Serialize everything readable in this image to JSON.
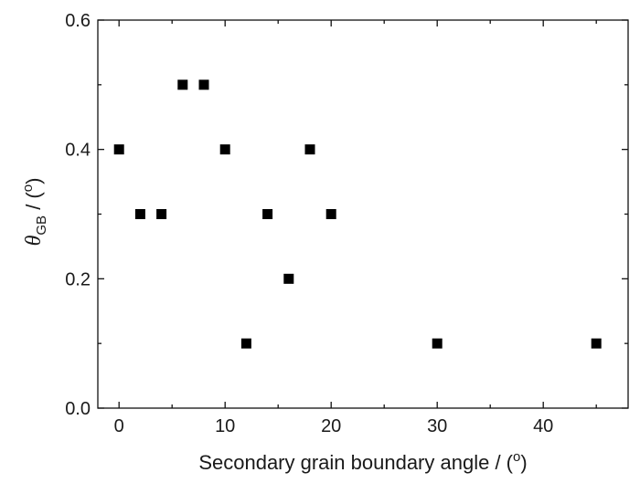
{
  "chart_data": {
    "type": "scatter",
    "title": "",
    "xlabel": {
      "text": "Secondary grain boundary angle / (",
      "sup": "o",
      "suffix": ")"
    },
    "ylabel": {
      "symbol": "θ",
      "sub": "GB",
      "text": " / (",
      "sup": "o",
      "suffix": ")"
    },
    "xlim": [
      -2,
      48
    ],
    "ylim": [
      0,
      0.6
    ],
    "x_ticks": [
      0,
      10,
      20,
      30,
      40
    ],
    "x_tick_labels": [
      "0",
      "10",
      "20",
      "30",
      "40"
    ],
    "y_ticks": [
      0.0,
      0.2,
      0.4,
      0.6
    ],
    "y_tick_labels": [
      "0.0",
      "0.2",
      "0.4",
      "0.6"
    ],
    "grid": false,
    "legend": "none",
    "marker": "square",
    "marker_color": "#000000",
    "series": [
      {
        "points": [
          {
            "x": 0,
            "y": 0.4
          },
          {
            "x": 2,
            "y": 0.3
          },
          {
            "x": 4,
            "y": 0.3
          },
          {
            "x": 6,
            "y": 0.5
          },
          {
            "x": 8,
            "y": 0.5
          },
          {
            "x": 10,
            "y": 0.4
          },
          {
            "x": 12,
            "y": 0.1
          },
          {
            "x": 14,
            "y": 0.3
          },
          {
            "x": 16,
            "y": 0.2
          },
          {
            "x": 18,
            "y": 0.4
          },
          {
            "x": 20,
            "y": 0.3
          },
          {
            "x": 30,
            "y": 0.1
          },
          {
            "x": 45,
            "y": 0.1
          }
        ]
      }
    ]
  }
}
